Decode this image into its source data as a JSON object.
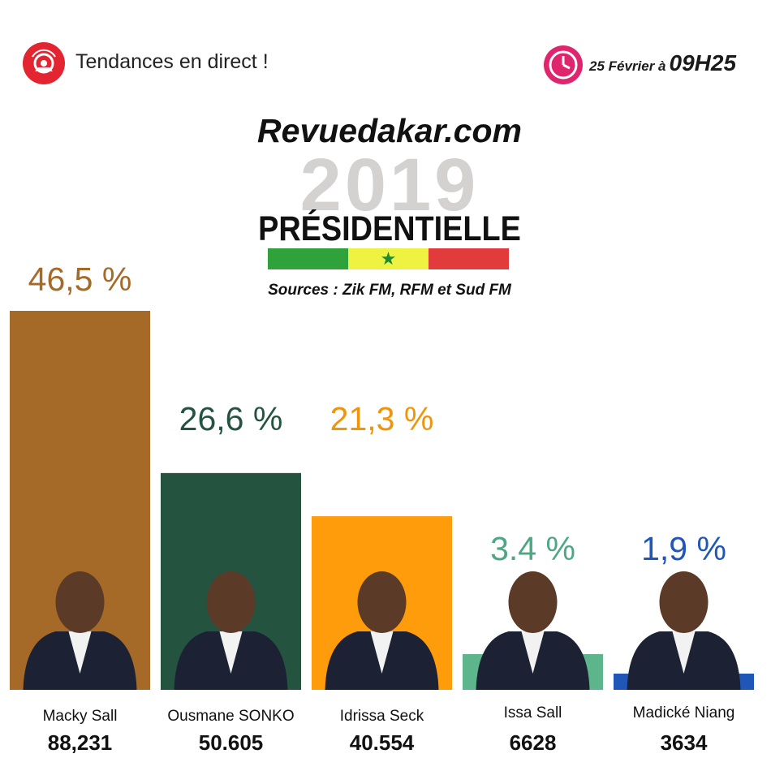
{
  "header": {
    "live_icon": "broadcast-icon",
    "live_label": "Tendances en direct !",
    "clock_icon": "clock-icon",
    "date_label": "25 Février à",
    "time_label": "09H25"
  },
  "title_block": {
    "site": "Revuedakar.com",
    "year": "2019",
    "election": "PRÉSIDENTIELLE",
    "sources": "Sources : Zik FM, RFM et Sud FM",
    "flag_colors": [
      "#2fa23b",
      "#eef241",
      "#e23b3b"
    ]
  },
  "chart_data": {
    "type": "bar",
    "categories": [
      "Macky Sall",
      "Ousmane SONKO",
      "Idrissa Seck",
      "Issa Sall",
      "Madické Niang"
    ],
    "values": [
      46.5,
      26.6,
      21.3,
      3.4,
      1.9
    ],
    "value_labels": [
      "46,5 %",
      "26,6 %",
      "21,3 %",
      "3.4 %",
      "1,9 %"
    ],
    "votes": [
      "88,231",
      "50.605",
      "40.554",
      "6628",
      "3634"
    ],
    "colors": [
      "#a56a27",
      "#245440",
      "#ff9c0b",
      "#5db58b",
      "#1f56b8"
    ],
    "label_colors": [
      "#a56a27",
      "#245440",
      "#f0950b",
      "#4fa684",
      "#1f56b8"
    ],
    "ylim": [
      0,
      50
    ]
  }
}
